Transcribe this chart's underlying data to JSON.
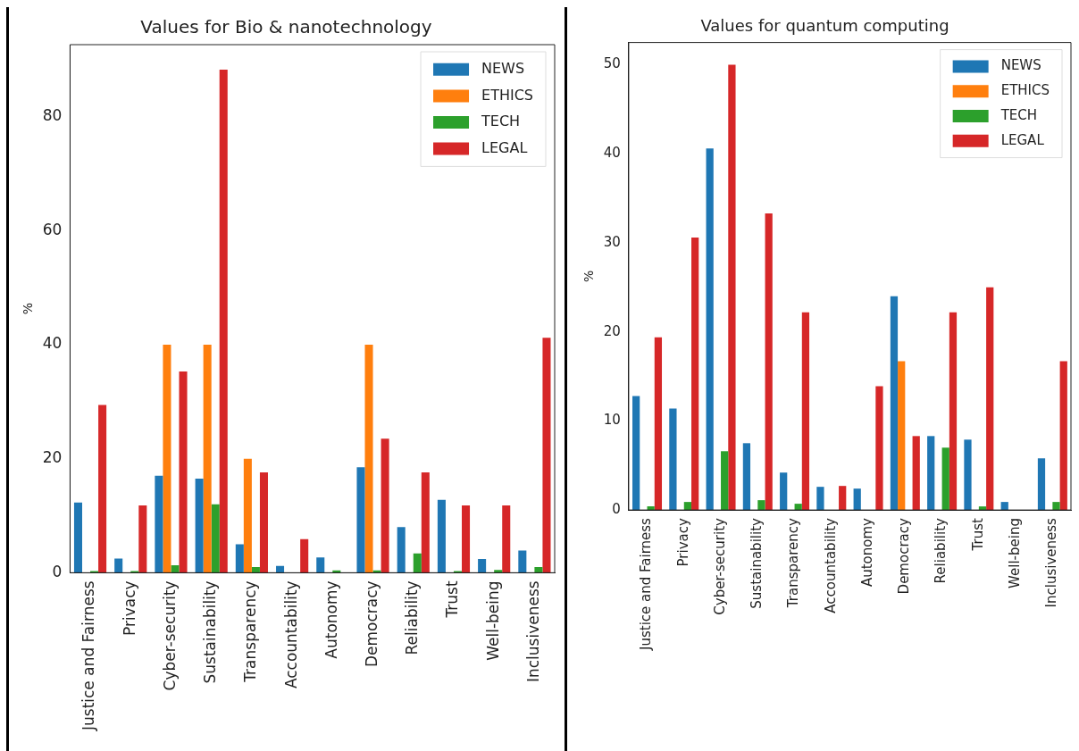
{
  "chart_data": [
    {
      "type": "bar",
      "title": "Values for Bio & nanotechnology",
      "ylabel": "%",
      "categories": [
        "Justice and Fairness",
        "Privacy",
        "Cyber-security",
        "Sustainability",
        "Transparency",
        "Accountability",
        "Autonomy",
        "Democracy",
        "Reliability",
        "Trust",
        "Well-being",
        "Inclusiveness"
      ],
      "series": [
        {
          "name": "NEWS",
          "color": "#1f77b4",
          "values": [
            12.3,
            2.5,
            17,
            16.5,
            5,
            1.2,
            2.7,
            18.5,
            8,
            12.8,
            2.4,
            3.9
          ]
        },
        {
          "name": "ETHICS",
          "color": "#ff7f0e",
          "values": [
            0,
            0,
            40,
            40,
            20,
            0,
            0,
            40,
            0,
            0,
            0,
            0
          ]
        },
        {
          "name": "TECH",
          "color": "#2ca02c",
          "values": [
            0.3,
            0.3,
            1.3,
            12,
            1,
            0,
            0.4,
            0.4,
            3.4,
            0.3,
            0.5,
            1
          ]
        },
        {
          "name": "LEGAL",
          "color": "#d62728",
          "values": [
            29.4,
            11.8,
            35.3,
            88.2,
            17.6,
            5.9,
            0,
            23.5,
            17.6,
            11.8,
            11.8,
            41.2
          ]
        }
      ],
      "ylim": [
        0,
        92.6
      ],
      "yticks": [
        0,
        20,
        40,
        60,
        80
      ],
      "grid": false,
      "legend": "top right"
    },
    {
      "type": "bar",
      "title": "Values for quantum computing",
      "ylabel": "%",
      "categories": [
        "Justice and Fairness",
        "Privacy",
        "Cyber-security",
        "Sustainability",
        "Transparency",
        "Accountability",
        "Autonomy",
        "Democracy",
        "Reliability",
        "Trust",
        "Well-being",
        "Inclusiveness"
      ],
      "series": [
        {
          "name": "NEWS",
          "color": "#1f77b4",
          "values": [
            12.8,
            11.4,
            40.6,
            7.5,
            4.2,
            2.6,
            2.4,
            24,
            8.3,
            7.9,
            0.9,
            5.8
          ]
        },
        {
          "name": "ETHICS",
          "color": "#ff7f0e",
          "values": [
            0,
            0,
            0,
            0,
            0,
            0,
            0,
            16.7,
            0,
            0,
            0,
            0
          ]
        },
        {
          "name": "TECH",
          "color": "#2ca02c",
          "values": [
            0.4,
            0.9,
            6.6,
            1.1,
            0.7,
            0,
            0,
            0,
            7,
            0.4,
            0,
            0.9
          ]
        },
        {
          "name": "LEGAL",
          "color": "#d62728",
          "values": [
            19.4,
            30.6,
            50,
            33.3,
            22.2,
            2.7,
            13.9,
            8.3,
            22.2,
            25,
            0,
            16.7
          ]
        }
      ],
      "ylim": [
        0,
        52.5
      ],
      "yticks": [
        0,
        10,
        20,
        30,
        40,
        50
      ],
      "grid": false,
      "legend": "top right"
    }
  ]
}
